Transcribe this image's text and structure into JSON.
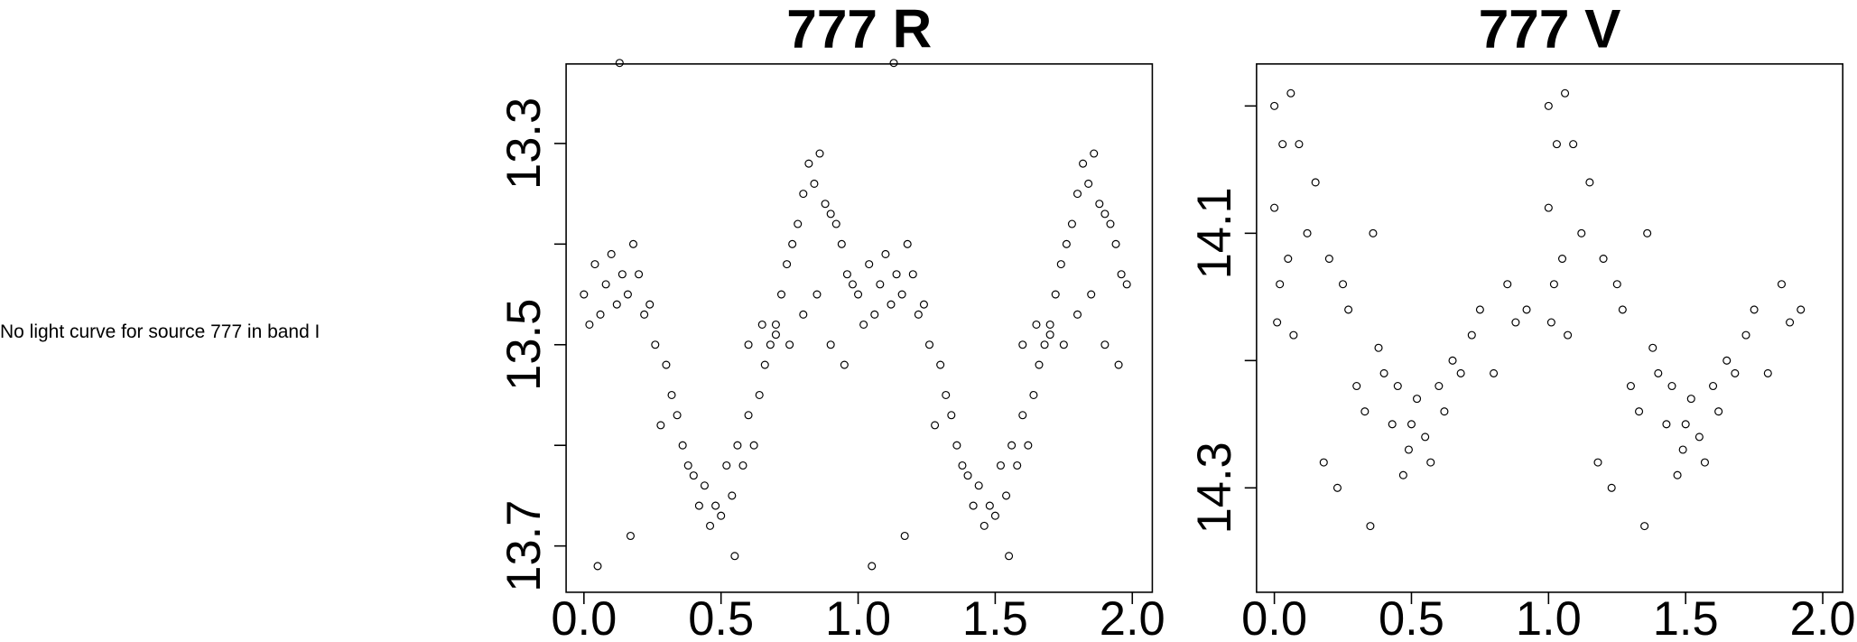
{
  "message": "No light curve for source 777 in band I",
  "chart_data": [
    {
      "type": "scatter",
      "title": "777 R",
      "color": "#000000",
      "x": [
        0,
        0.02,
        0.04,
        0.06,
        0.08,
        0.1,
        0.12,
        0.14,
        0.16,
        0.18,
        0.2,
        0.22,
        0.24,
        0.26,
        0.28,
        0.3,
        0.32,
        0.34,
        0.36,
        0.38,
        0.4,
        0.42,
        0.44,
        0.46,
        0.48,
        0.5,
        0.52,
        0.54,
        0.56,
        0.58,
        0.6,
        0.62,
        0.64,
        0.66,
        0.68,
        0.7,
        0.72,
        0.74,
        0.76,
        0.78,
        0.8,
        0.82,
        0.84,
        0.86,
        0.88,
        0.9,
        0.92,
        0.94,
        0.96,
        0.98,
        0.6,
        0.65,
        0.7,
        0.75,
        0.8,
        0.85,
        0.9,
        0.95,
        0.13,
        0.05,
        0.17,
        0.55,
        1,
        1.02,
        1.04,
        1.06,
        1.08,
        1.1,
        1.12,
        1.14,
        1.16,
        1.18,
        1.2,
        1.22,
        1.24,
        1.26,
        1.28,
        1.3,
        1.32,
        1.34,
        1.36,
        1.38,
        1.4,
        1.42,
        1.44,
        1.46,
        1.48,
        1.5,
        1.52,
        1.54,
        1.56,
        1.58,
        1.6,
        1.62,
        1.64,
        1.66,
        1.68,
        1.7,
        1.72,
        1.74,
        1.76,
        1.78,
        1.8,
        1.82,
        1.84,
        1.86,
        1.88,
        1.9,
        1.92,
        1.94,
        1.96,
        1.98,
        1.6,
        1.65,
        1.7,
        1.75,
        1.8,
        1.85,
        1.9,
        1.95,
        1.13,
        1.05,
        1.17,
        1.55
      ],
      "values": [
        13.45,
        13.48,
        13.42,
        13.47,
        13.44,
        13.41,
        13.46,
        13.43,
        13.45,
        13.4,
        13.43,
        13.47,
        13.46,
        13.5,
        13.58,
        13.52,
        13.55,
        13.57,
        13.6,
        13.62,
        13.63,
        13.66,
        13.64,
        13.68,
        13.66,
        13.67,
        13.62,
        13.65,
        13.6,
        13.62,
        13.57,
        13.6,
        13.55,
        13.52,
        13.5,
        13.48,
        13.45,
        13.42,
        13.4,
        13.38,
        13.35,
        13.32,
        13.34,
        13.31,
        13.36,
        13.37,
        13.38,
        13.4,
        13.43,
        13.44,
        13.5,
        13.48,
        13.49,
        13.5,
        13.47,
        13.45,
        13.5,
        13.52,
        13.22,
        13.72,
        13.69,
        13.71,
        13.45,
        13.48,
        13.42,
        13.47,
        13.44,
        13.41,
        13.46,
        13.43,
        13.45,
        13.4,
        13.43,
        13.47,
        13.46,
        13.5,
        13.58,
        13.52,
        13.55,
        13.57,
        13.6,
        13.62,
        13.63,
        13.66,
        13.64,
        13.68,
        13.66,
        13.67,
        13.62,
        13.65,
        13.6,
        13.62,
        13.57,
        13.6,
        13.55,
        13.52,
        13.5,
        13.48,
        13.45,
        13.42,
        13.4,
        13.38,
        13.35,
        13.32,
        13.34,
        13.31,
        13.36,
        13.37,
        13.38,
        13.4,
        13.43,
        13.44,
        13.5,
        13.48,
        13.49,
        13.5,
        13.47,
        13.45,
        13.5,
        13.52,
        13.22,
        13.72,
        13.69,
        13.71
      ],
      "xlim": [
        -0.065,
        2.073
      ],
      "ylim": [
        13.746,
        13.221
      ],
      "xticks": [
        {
          "value": 0,
          "label": "0.0"
        },
        0.5,
        {
          "value": 1,
          "label": "1.0"
        },
        1.5,
        {
          "value": 2,
          "label": "2.0"
        }
      ],
      "yticks": [
        13.3,
        13.5,
        13.7
      ],
      "yminorticks": [
        13.4,
        13.6
      ]
    },
    {
      "type": "scatter",
      "title": "777 V",
      "color": "#000000",
      "x": [
        0,
        0,
        0.01,
        0.02,
        0.03,
        0.05,
        0.06,
        0.07,
        0.09,
        0.12,
        0.15,
        0.18,
        0.2,
        0.23,
        0.25,
        0.27,
        0.3,
        0.33,
        0.35,
        0.36,
        0.38,
        0.4,
        0.43,
        0.45,
        0.47,
        0.49,
        0.5,
        0.52,
        0.55,
        0.57,
        0.6,
        0.62,
        0.65,
        0.68,
        0.72,
        0.75,
        0.8,
        0.85,
        0.88,
        0.92,
        1,
        1,
        1.01,
        1.02,
        1.03,
        1.05,
        1.06,
        1.07,
        1.09,
        1.12,
        1.15,
        1.18,
        1.2,
        1.23,
        1.25,
        1.27,
        1.3,
        1.33,
        1.35,
        1.36,
        1.38,
        1.4,
        1.43,
        1.45,
        1.47,
        1.49,
        1.5,
        1.52,
        1.55,
        1.57,
        1.6,
        1.62,
        1.65,
        1.68,
        1.72,
        1.75,
        1.8,
        1.85,
        1.88,
        1.92
      ],
      "values": [
        14,
        14.08,
        14.17,
        14.14,
        14.03,
        14.12,
        13.99,
        14.18,
        14.03,
        14.1,
        14.06,
        14.28,
        14.12,
        14.3,
        14.14,
        14.16,
        14.22,
        14.24,
        14.33,
        14.1,
        14.19,
        14.21,
        14.25,
        14.22,
        14.29,
        14.27,
        14.25,
        14.23,
        14.26,
        14.28,
        14.22,
        14.24,
        14.2,
        14.21,
        14.18,
        14.16,
        14.21,
        14.14,
        14.17,
        14.16,
        14,
        14.08,
        14.17,
        14.14,
        14.03,
        14.12,
        13.99,
        14.18,
        14.03,
        14.1,
        14.06,
        14.28,
        14.12,
        14.3,
        14.14,
        14.16,
        14.22,
        14.24,
        14.33,
        14.1,
        14.19,
        14.21,
        14.25,
        14.22,
        14.29,
        14.27,
        14.25,
        14.23,
        14.26,
        14.28,
        14.22,
        14.24,
        14.2,
        14.21,
        14.18,
        14.16,
        14.21,
        14.14,
        14.17,
        14.16
      ],
      "xlim": [
        -0.065,
        2.073
      ],
      "ylim": [
        14.382,
        13.967
      ],
      "xticks": [
        {
          "value": 0,
          "label": "0.0"
        },
        0.5,
        {
          "value": 1,
          "label": "1.0"
        },
        1.5,
        {
          "value": 2,
          "label": "2.0"
        }
      ],
      "yticks": [
        14.1,
        14.3
      ],
      "yminorticks": [
        14,
        14.2
      ]
    }
  ]
}
